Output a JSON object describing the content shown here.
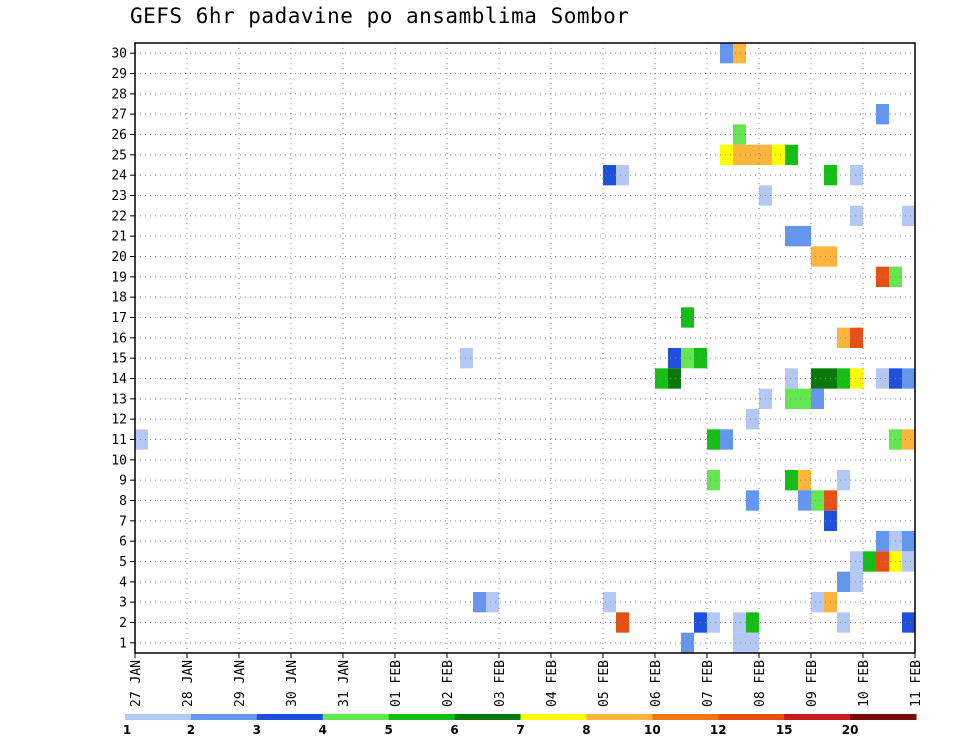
{
  "chart_data": {
    "type": "heatmap",
    "title": "GEFS 6hr padavine po ansamblima Sombor",
    "x_tick_labels": [
      "27 JAN",
      "28 JAN",
      "29 JAN",
      "30 JAN",
      "31 JAN",
      "01 FEB",
      "02 FEB",
      "03 FEB",
      "04 FEB",
      "05 FEB",
      "06 FEB",
      "07 FEB",
      "08 FEB",
      "09 FEB",
      "10 FEB",
      "11 FEB"
    ],
    "y_tick_labels": [
      "1",
      "2",
      "3",
      "4",
      "5",
      "6",
      "7",
      "8",
      "9",
      "10",
      "11",
      "12",
      "13",
      "14",
      "15",
      "16",
      "17",
      "18",
      "19",
      "20",
      "21",
      "22",
      "23",
      "24",
      "25",
      "26",
      "27",
      "28",
      "29",
      "30"
    ],
    "ylim": [
      0.5,
      30.5
    ],
    "xlim_days": [
      0,
      15
    ],
    "time_step_hours": 6,
    "grid": true,
    "legend": {
      "placement": "bottom",
      "tick_labels": [
        "1",
        "2",
        "3",
        "4",
        "5",
        "6",
        "7",
        "8",
        "10",
        "12",
        "15",
        "20"
      ],
      "colors": [
        "#b4c8f5",
        "#6496f0",
        "#1e50dc",
        "#64e650",
        "#14be14",
        "#0a780a",
        "#ffff00",
        "#ffb43c",
        "#f07814",
        "#e65014",
        "#c81e1e",
        "#780a0a"
      ]
    },
    "cells": [
      {
        "d": 0.125,
        "m": 11,
        "v": 1.5
      },
      {
        "d": 6.375,
        "m": 15,
        "v": 1.5
      },
      {
        "d": 6.625,
        "m": 3,
        "v": 2.5
      },
      {
        "d": 6.875,
        "m": 3,
        "v": 1.5
      },
      {
        "d": 9.125,
        "m": 24,
        "v": 3.5
      },
      {
        "d": 9.375,
        "m": 24,
        "v": 1.5
      },
      {
        "d": 9.125,
        "m": 3,
        "v": 1.5
      },
      {
        "d": 9.375,
        "m": 2,
        "v": 13
      },
      {
        "d": 10.125,
        "m": 14,
        "v": 5.5
      },
      {
        "d": 10.375,
        "m": 14,
        "v": 6.5
      },
      {
        "d": 10.375,
        "m": 15,
        "v": 3.5
      },
      {
        "d": 10.625,
        "m": 15,
        "v": 4.5
      },
      {
        "d": 10.875,
        "m": 15,
        "v": 5.5
      },
      {
        "d": 10.625,
        "m": 17,
        "v": 5.5
      },
      {
        "d": 10.625,
        "m": 1,
        "v": 2.5
      },
      {
        "d": 10.875,
        "m": 2,
        "v": 3.5
      },
      {
        "d": 11.125,
        "m": 2,
        "v": 1.5
      },
      {
        "d": 11.125,
        "m": 11,
        "v": 5.5
      },
      {
        "d": 11.375,
        "m": 11,
        "v": 2.5
      },
      {
        "d": 11.125,
        "m": 9,
        "v": 4.5
      },
      {
        "d": 11.375,
        "m": 30,
        "v": 2.5
      },
      {
        "d": 11.625,
        "m": 30,
        "v": 9
      },
      {
        "d": 11.375,
        "m": 25,
        "v": 7.5
      },
      {
        "d": 11.625,
        "m": 25,
        "v": 9
      },
      {
        "d": 11.875,
        "m": 25,
        "v": 9
      },
      {
        "d": 12.125,
        "m": 25,
        "v": 9
      },
      {
        "d": 12.375,
        "m": 25,
        "v": 7.5
      },
      {
        "d": 12.625,
        "m": 25,
        "v": 5.5
      },
      {
        "d": 11.625,
        "m": 26,
        "v": 4.5
      },
      {
        "d": 11.625,
        "m": 2,
        "v": 1.5
      },
      {
        "d": 11.875,
        "m": 2,
        "v": 5.5
      },
      {
        "d": 11.625,
        "m": 1,
        "v": 1.5
      },
      {
        "d": 11.875,
        "m": 1,
        "v": 1.5
      },
      {
        "d": 11.875,
        "m": 12,
        "v": 1.5
      },
      {
        "d": 11.875,
        "m": 8,
        "v": 2.5
      },
      {
        "d": 12.125,
        "m": 13,
        "v": 1.5
      },
      {
        "d": 12.125,
        "m": 23,
        "v": 1.5
      },
      {
        "d": 12.625,
        "m": 21,
        "v": 2.5
      },
      {
        "d": 12.875,
        "m": 21,
        "v": 2.5
      },
      {
        "d": 12.625,
        "m": 14,
        "v": 1.5
      },
      {
        "d": 12.625,
        "m": 13,
        "v": 4.5
      },
      {
        "d": 12.875,
        "m": 13,
        "v": 4.5
      },
      {
        "d": 13.125,
        "m": 13,
        "v": 2.5
      },
      {
        "d": 12.625,
        "m": 9,
        "v": 5.5
      },
      {
        "d": 12.875,
        "m": 9,
        "v": 9
      },
      {
        "d": 12.875,
        "m": 8,
        "v": 2.5
      },
      {
        "d": 13.125,
        "m": 8,
        "v": 4.5
      },
      {
        "d": 13.375,
        "m": 8,
        "v": 13
      },
      {
        "d": 13.125,
        "m": 20,
        "v": 9
      },
      {
        "d": 13.375,
        "m": 20,
        "v": 9
      },
      {
        "d": 13.125,
        "m": 14,
        "v": 6.5
      },
      {
        "d": 13.375,
        "m": 14,
        "v": 6.5
      },
      {
        "d": 13.625,
        "m": 14,
        "v": 5.5
      },
      {
        "d": 13.875,
        "m": 14,
        "v": 7.5
      },
      {
        "d": 13.375,
        "m": 24,
        "v": 5.5
      },
      {
        "d": 13.375,
        "m": 7,
        "v": 3.5
      },
      {
        "d": 13.125,
        "m": 3,
        "v": 1.5
      },
      {
        "d": 13.375,
        "m": 3,
        "v": 9
      },
      {
        "d": 13.625,
        "m": 16,
        "v": 9
      },
      {
        "d": 13.875,
        "m": 16,
        "v": 14
      },
      {
        "d": 13.625,
        "m": 9,
        "v": 1.5
      },
      {
        "d": 13.625,
        "m": 4,
        "v": 2.5
      },
      {
        "d": 13.875,
        "m": 4,
        "v": 1.5
      },
      {
        "d": 13.625,
        "m": 2,
        "v": 1.5
      },
      {
        "d": 13.875,
        "m": 24,
        "v": 1.5
      },
      {
        "d": 13.875,
        "m": 22,
        "v": 1.5
      },
      {
        "d": 13.875,
        "m": 5,
        "v": 1.5
      },
      {
        "d": 14.125,
        "m": 5,
        "v": 5.5
      },
      {
        "d": 14.375,
        "m": 5,
        "v": 13
      },
      {
        "d": 14.625,
        "m": 5,
        "v": 7.5
      },
      {
        "d": 14.875,
        "m": 5,
        "v": 1.5
      },
      {
        "d": 14.375,
        "m": 27,
        "v": 2.5
      },
      {
        "d": 14.375,
        "m": 19,
        "v": 13
      },
      {
        "d": 14.625,
        "m": 19,
        "v": 4.5
      },
      {
        "d": 14.375,
        "m": 14,
        "v": 1.5
      },
      {
        "d": 14.625,
        "m": 14,
        "v": 3.5
      },
      {
        "d": 14.875,
        "m": 14,
        "v": 2.5
      },
      {
        "d": 14.375,
        "m": 6,
        "v": 2.5
      },
      {
        "d": 14.625,
        "m": 6,
        "v": 1.5
      },
      {
        "d": 14.875,
        "m": 6,
        "v": 2.5
      },
      {
        "d": 14.625,
        "m": 11,
        "v": 4.5
      },
      {
        "d": 14.875,
        "m": 11,
        "v": 9
      },
      {
        "d": 14.875,
        "m": 22,
        "v": 1.5
      },
      {
        "d": 14.875,
        "m": 2,
        "v": 3.5
      }
    ]
  }
}
